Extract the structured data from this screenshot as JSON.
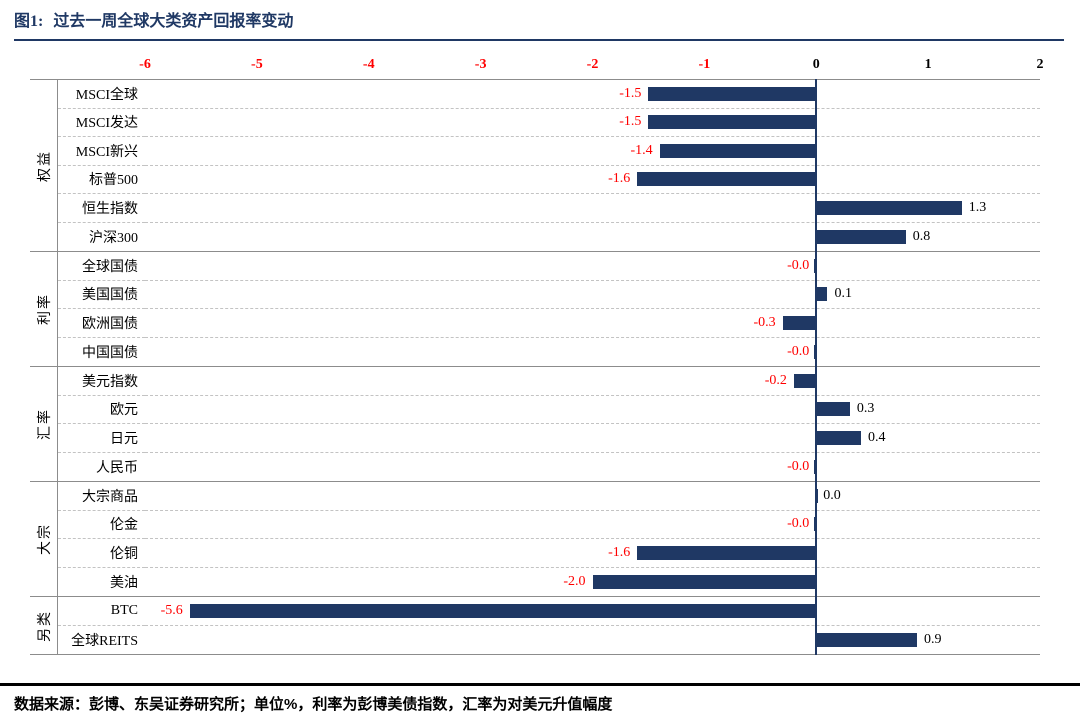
{
  "title": {
    "label": "图1:",
    "text": "过去一周全球大类资产回报率变动"
  },
  "footer": {
    "source": "数据来源：彭博、东吴证券研究所；单位%，利率为彭博美债指数，汇率为对美元升值幅度"
  },
  "colors": {
    "bar": "#1F3864",
    "title": "#1F3864",
    "zero_line": "#1F3864",
    "negative_label": "#FF0000",
    "positive_label": "#000000",
    "axis_tick_negative": "#FF0000",
    "axis_tick_nonnegative": "#000000",
    "grid_dashed": "#c3c3c3",
    "separator": "#8c8c8c"
  },
  "chart_data": {
    "type": "bar",
    "orientation": "horizontal",
    "unit": "%",
    "xlim": [
      -6,
      2
    ],
    "x_ticks": [
      -6,
      -5,
      -4,
      -3,
      -2,
      -1,
      0,
      1,
      2
    ],
    "grid": "dashed-row-lines",
    "groups": [
      {
        "label": "权益",
        "items": [
          {
            "label": "MSCI全球",
            "value": -1.5,
            "display": "-1.5"
          },
          {
            "label": "MSCI发达",
            "value": -1.5,
            "display": "-1.5"
          },
          {
            "label": "MSCI新兴",
            "value": -1.4,
            "display": "-1.4"
          },
          {
            "label": "标普500",
            "value": -1.6,
            "display": "-1.6"
          },
          {
            "label": "恒生指数",
            "value": 1.3,
            "display": "1.3"
          },
          {
            "label": "沪深300",
            "value": 0.8,
            "display": "0.8"
          }
        ]
      },
      {
        "label": "利率",
        "items": [
          {
            "label": "全球国债",
            "value": -0.0,
            "display": "-0.0"
          },
          {
            "label": "美国国债",
            "value": 0.1,
            "display": "0.1"
          },
          {
            "label": "欧洲国债",
            "value": -0.3,
            "display": "-0.3"
          },
          {
            "label": "中国国债",
            "value": -0.0,
            "display": "-0.0"
          }
        ]
      },
      {
        "label": "汇率",
        "items": [
          {
            "label": "美元指数",
            "value": -0.2,
            "display": "-0.2"
          },
          {
            "label": "欧元",
            "value": 0.3,
            "display": "0.3"
          },
          {
            "label": "日元",
            "value": 0.4,
            "display": "0.4"
          },
          {
            "label": "人民币",
            "value": -0.0,
            "display": "-0.0"
          }
        ]
      },
      {
        "label": "大宗",
        "items": [
          {
            "label": "大宗商品",
            "value": 0.0,
            "display": "0.0"
          },
          {
            "label": "伦金",
            "value": -0.0,
            "display": "-0.0"
          },
          {
            "label": "伦铜",
            "value": -1.6,
            "display": "-1.6"
          },
          {
            "label": "美油",
            "value": -2.0,
            "display": "-2.0"
          }
        ]
      },
      {
        "label": "另类",
        "items": [
          {
            "label": "BTC",
            "value": -5.6,
            "display": "-5.6"
          },
          {
            "label": "全球REITS",
            "value": 0.9,
            "display": "0.9"
          }
        ]
      }
    ]
  }
}
